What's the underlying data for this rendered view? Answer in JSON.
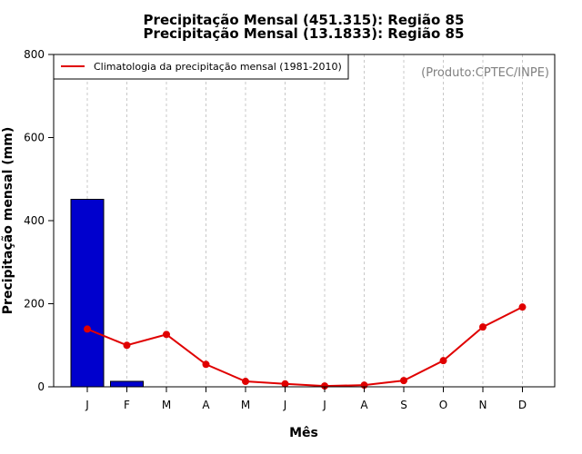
{
  "chart_data": {
    "type": "bar",
    "title_lines": [
      "Precipitação Mensal (451.315): Região 85",
      "Precipitação Mensal (13.1833): Região 85"
    ],
    "credit": "(Produto:CPTEC/INPE)",
    "xlabel": "Mês",
    "ylabel": "Precipitação mensal (mm)",
    "ylim": [
      0,
      800
    ],
    "yticks": [
      0,
      200,
      400,
      600,
      800
    ],
    "categories": [
      "J",
      "F",
      "M",
      "A",
      "M",
      "J",
      "J",
      "A",
      "S",
      "O",
      "N",
      "D"
    ],
    "grid": "vertical dashed gridlines",
    "legend_position": "top-left",
    "series": [
      {
        "type": "bar",
        "color": "#0000cd",
        "values": [
          451.315,
          13.1833,
          null,
          null,
          null,
          null,
          null,
          null,
          null,
          null,
          null,
          null
        ]
      },
      {
        "type": "line",
        "name": "Climatologia da precipitação mensal (1981-2010)",
        "color": "#e00000",
        "values": [
          139,
          100,
          126,
          54,
          13,
          7,
          2,
          4,
          15,
          63,
          144,
          192
        ]
      }
    ]
  }
}
